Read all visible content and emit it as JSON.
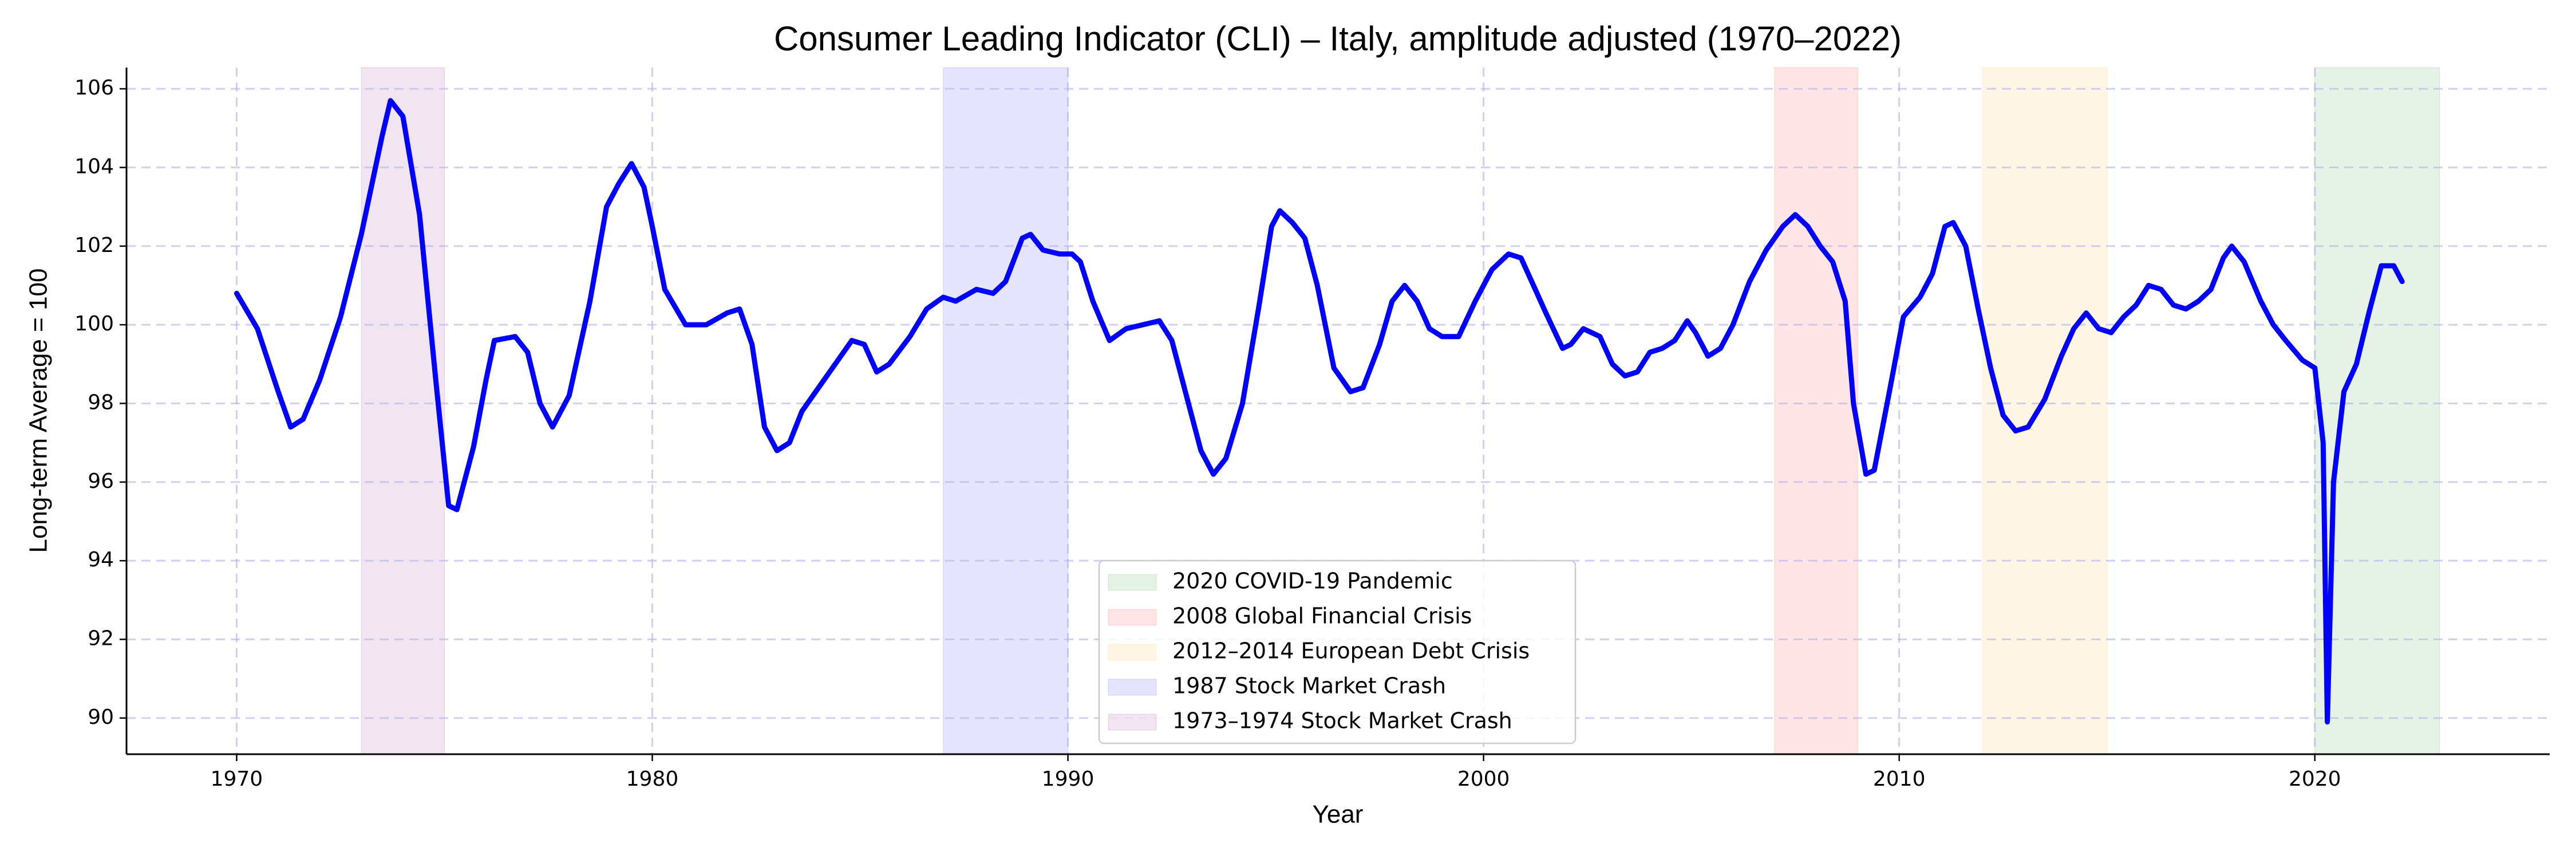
{
  "chart_data": {
    "type": "line",
    "title": "Consumer Leading Indicator (CLI) – Italy, amplitude adjusted (1970–2022)",
    "xlabel": "Year",
    "ylabel": "Long-term Average = 100",
    "x": [
      1970.0,
      1970.5,
      1971.0,
      1971.3,
      1971.6,
      1972.0,
      1972.5,
      1973.0,
      1973.5,
      1973.7,
      1974.0,
      1974.4,
      1974.8,
      1975.1,
      1975.3,
      1975.7,
      1976.0,
      1976.2,
      1976.7,
      1977.0,
      1977.3,
      1977.6,
      1978.0,
      1978.5,
      1978.9,
      1979.2,
      1979.5,
      1979.8,
      1980.0,
      1980.3,
      1980.8,
      1981.3,
      1981.8,
      1982.1,
      1982.4,
      1982.7,
      1983.0,
      1983.3,
      1983.6,
      1984.0,
      1984.4,
      1984.8,
      1985.1,
      1985.4,
      1985.7,
      1986.2,
      1986.6,
      1987.0,
      1987.3,
      1987.8,
      1988.2,
      1988.5,
      1988.9,
      1989.1,
      1989.4,
      1989.8,
      1990.1,
      1990.3,
      1990.6,
      1991.0,
      1991.4,
      1991.8,
      1992.2,
      1992.5,
      1992.9,
      1993.2,
      1993.5,
      1993.8,
      1994.2,
      1994.6,
      1994.9,
      1995.1,
      1995.4,
      1995.7,
      1996.0,
      1996.4,
      1996.8,
      1997.1,
      1997.5,
      1997.8,
      1998.1,
      1998.4,
      1998.7,
      1999.0,
      1999.4,
      1999.8,
      2000.2,
      2000.6,
      2000.9,
      2001.2,
      2001.5,
      2001.9,
      2002.1,
      2002.4,
      2002.8,
      2003.1,
      2003.4,
      2003.7,
      2004.0,
      2004.3,
      2004.6,
      2004.9,
      2005.1,
      2005.4,
      2005.7,
      2006.0,
      2006.4,
      2006.8,
      2007.2,
      2007.5,
      2007.8,
      2008.1,
      2008.4,
      2008.7,
      2008.9,
      2009.2,
      2009.4,
      2009.8,
      2010.1,
      2010.5,
      2010.8,
      2011.1,
      2011.3,
      2011.6,
      2011.9,
      2012.2,
      2012.5,
      2012.8,
      2013.1,
      2013.5,
      2013.9,
      2014.2,
      2014.5,
      2014.8,
      2015.1,
      2015.4,
      2015.7,
      2016.0,
      2016.3,
      2016.6,
      2016.9,
      2017.2,
      2017.5,
      2017.8,
      2018.0,
      2018.3,
      2018.7,
      2019.0,
      2019.3,
      2019.7,
      2020.0,
      2020.2,
      2020.3,
      2020.45,
      2020.7,
      2021.0,
      2021.3,
      2021.6,
      2021.9,
      2022.1
    ],
    "values": [
      100.8,
      99.9,
      98.3,
      97.4,
      97.6,
      98.6,
      100.2,
      102.3,
      104.8,
      105.7,
      105.3,
      102.8,
      98.5,
      95.4,
      95.3,
      96.9,
      98.6,
      99.6,
      99.7,
      99.3,
      98.0,
      97.4,
      98.2,
      100.6,
      103.0,
      103.6,
      104.1,
      103.5,
      102.5,
      100.9,
      100.0,
      100.0,
      100.3,
      100.4,
      99.5,
      97.4,
      96.8,
      97.0,
      97.8,
      98.4,
      99.0,
      99.6,
      99.5,
      98.8,
      99.0,
      99.7,
      100.4,
      100.7,
      100.6,
      100.9,
      100.8,
      101.1,
      102.2,
      102.3,
      101.9,
      101.8,
      101.8,
      101.6,
      100.6,
      99.6,
      99.9,
      100.0,
      100.1,
      99.6,
      98.0,
      96.8,
      96.2,
      96.6,
      98.0,
      100.5,
      102.5,
      102.9,
      102.6,
      102.2,
      101.0,
      98.9,
      98.3,
      98.4,
      99.5,
      100.6,
      101.0,
      100.6,
      99.9,
      99.7,
      99.7,
      100.6,
      101.4,
      101.8,
      101.7,
      101.0,
      100.3,
      99.4,
      99.5,
      99.9,
      99.7,
      99.0,
      98.7,
      98.8,
      99.3,
      99.4,
      99.6,
      100.1,
      99.8,
      99.2,
      99.4,
      100.0,
      101.1,
      101.9,
      102.5,
      102.8,
      102.5,
      102.0,
      101.6,
      100.6,
      98.0,
      96.2,
      96.3,
      98.5,
      100.2,
      100.7,
      101.3,
      102.5,
      102.6,
      102.0,
      100.4,
      98.9,
      97.7,
      97.3,
      97.4,
      98.1,
      99.2,
      99.9,
      100.3,
      99.9,
      99.8,
      100.2,
      100.5,
      101.0,
      100.9,
      100.5,
      100.4,
      100.6,
      100.9,
      101.7,
      102.0,
      101.6,
      100.6,
      100.0,
      99.6,
      99.1,
      98.9,
      97.0,
      89.9,
      96.0,
      98.3,
      99.0,
      100.3,
      101.5,
      101.5,
      101.1
    ],
    "color": "#0000ff",
    "spans": [
      {
        "label": "2020 COVID-19 Pandemic",
        "start": 2020,
        "end": 2023,
        "color": "#008000"
      },
      {
        "label": "2008 Global Financial Crisis",
        "start": 2007,
        "end": 2009,
        "color": "#ff0000"
      },
      {
        "label": "2012–2014 European Debt Crisis",
        "start": 2012,
        "end": 2015,
        "color": "#ffa500"
      },
      {
        "label": "1987 Stock Market Crash",
        "start": 1987,
        "end": 1990,
        "color": "#0000ff"
      },
      {
        "label": "1973–1974 Stock Market Crash",
        "start": 1973,
        "end": 1975,
        "color": "#800080"
      }
    ],
    "span_alpha": 0.1,
    "xlim": [
      1967.35,
      2025.65
    ],
    "xticks": [
      1970,
      1980,
      1990,
      2000,
      2010,
      2020
    ],
    "ylim": [
      89.08,
      106.54
    ],
    "yticks": [
      90,
      92,
      94,
      96,
      98,
      100,
      102,
      104,
      106
    ],
    "grid": true,
    "legend": "lower center"
  }
}
